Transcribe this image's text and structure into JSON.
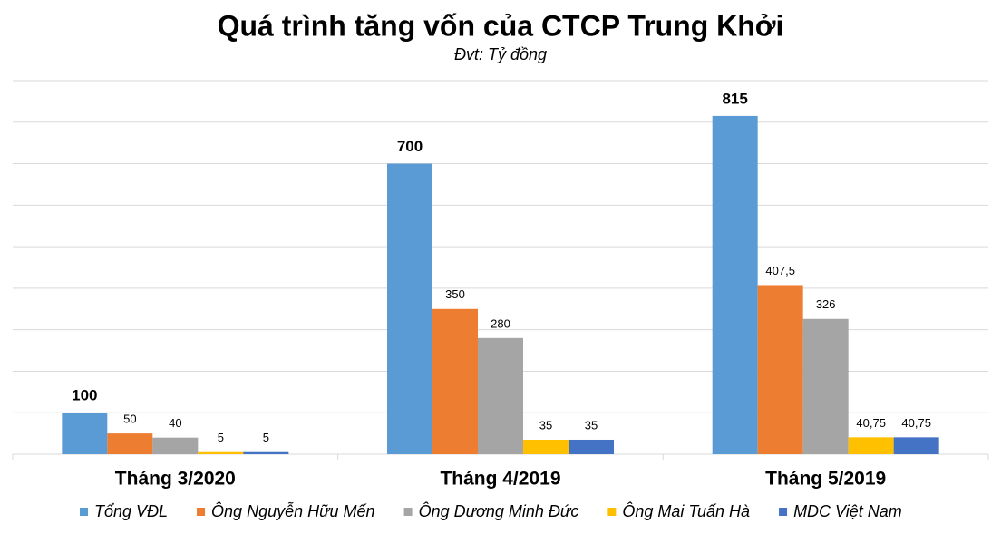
{
  "chart_data": {
    "type": "bar",
    "title": "Quá trình tăng vốn của CTCP Trung Khởi",
    "subtitle": "Đvt: Tỷ đồng",
    "categories": [
      "Tháng 3/2020",
      "Tháng 4/2019",
      "Tháng 5/2019"
    ],
    "series": [
      {
        "name": "Tổng VĐL",
        "color": "#5b9bd5",
        "values": [
          100,
          700,
          815
        ]
      },
      {
        "name": "Ông Nguyễn Hữu Mến",
        "color": "#ed7d31",
        "values": [
          50,
          350,
          407.5
        ],
        "value_labels": [
          "50",
          "350",
          "407,5"
        ]
      },
      {
        "name": "Ông Dương Minh Đức",
        "color": "#a5a5a5",
        "values": [
          40,
          280,
          326
        ]
      },
      {
        "name": "Ông Mai Tuấn Hà",
        "color": "#ffc000",
        "values": [
          5,
          35,
          40.75
        ],
        "value_labels": [
          "5",
          "35",
          "40,75"
        ]
      },
      {
        "name": "MDC Việt Nam",
        "color": "#4472c4",
        "values": [
          5,
          35,
          40.75
        ],
        "value_labels": [
          "5",
          "35",
          "40,75"
        ]
      }
    ],
    "ylim": [
      0,
      900
    ],
    "yticks": [
      0,
      100,
      200,
      300,
      400,
      500,
      600,
      700,
      800,
      900
    ],
    "grid": true
  }
}
